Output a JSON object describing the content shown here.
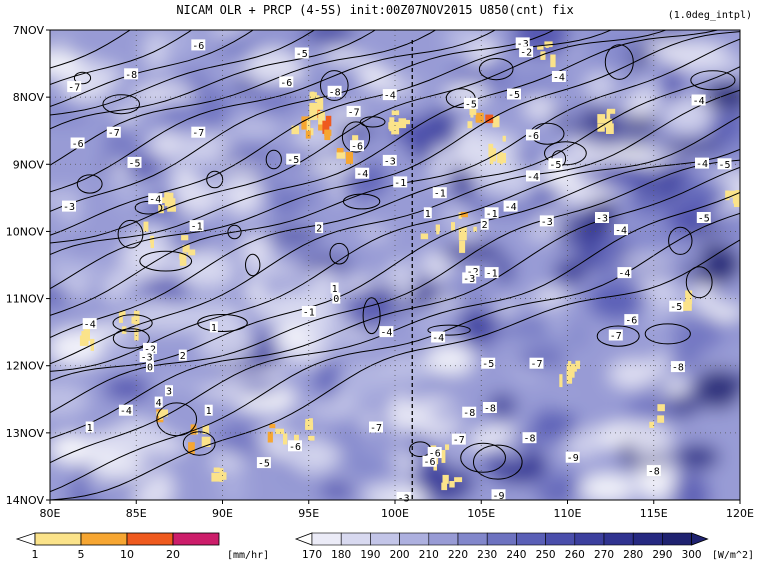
{
  "header": {
    "title": "NICAM  OLR + PRCP (4-5S) init:00Z07NOV2015 U850(cnt) fix",
    "note": "(1.0deg_intpl)"
  },
  "chart_data": {
    "type": "heatmap",
    "title": "NICAM  OLR + PRCP (4-5S) init:00Z07NOV2015 U850(cnt) fix",
    "x_ticks": [
      "80E",
      "85E",
      "90E",
      "95E",
      "100E",
      "105E",
      "110E",
      "115E",
      "120E"
    ],
    "x_range": [
      80,
      120
    ],
    "y_ticks": [
      "7NOV",
      "8NOV",
      "9NOV",
      "10NOV",
      "11NOV",
      "12NOV",
      "13NOV",
      "14NOV"
    ],
    "y_range": [
      "7NOV",
      "14NOV"
    ],
    "reference_line_lon": 101,
    "grid": true,
    "prcp_colorbar": {
      "labels": [
        "1",
        "5",
        "10",
        "20"
      ],
      "unit": "[mm/hr]",
      "colors": [
        "#ffffff",
        "#fbe38a",
        "#f6a632",
        "#ef5a1e",
        "#cc1d6a"
      ]
    },
    "olr_colorbar": {
      "labels": [
        "170",
        "180",
        "190",
        "200",
        "210",
        "220",
        "230",
        "240",
        "250",
        "260",
        "270",
        "280",
        "290",
        "300"
      ],
      "unit": "[W/m^2]",
      "colors": [
        "#ffffff",
        "#ebebf7",
        "#d8d9f0",
        "#c3c5e8",
        "#adb0df",
        "#989bd5",
        "#8287cb",
        "#6d72c0",
        "#5a5fb6",
        "#4a4eab",
        "#3c3f9e",
        "#303390",
        "#262981",
        "#1f2270"
      ]
    },
    "contour_labels": [
      {
        "lon": 88.6,
        "day": 7.23,
        "text": "-6"
      },
      {
        "lon": 94.6,
        "day": 7.35,
        "text": "-5"
      },
      {
        "lon": 93.7,
        "day": 7.78,
        "text": "-6"
      },
      {
        "lon": 84.7,
        "day": 7.66,
        "text": "-8"
      },
      {
        "lon": 81.4,
        "day": 7.85,
        "text": "-7"
      },
      {
        "lon": 99.7,
        "day": 7.97,
        "text": "-4"
      },
      {
        "lon": 97.6,
        "day": 8.22,
        "text": "-7"
      },
      {
        "lon": 96.5,
        "day": 7.92,
        "text": "-8"
      },
      {
        "lon": 104.4,
        "day": 8.1,
        "text": "-5"
      },
      {
        "lon": 106.9,
        "day": 7.96,
        "text": "-5"
      },
      {
        "lon": 107.4,
        "day": 7.2,
        "text": "-3"
      },
      {
        "lon": 107.6,
        "day": 7.33,
        "text": "-2"
      },
      {
        "lon": 109.5,
        "day": 7.7,
        "text": "-4"
      },
      {
        "lon": 117.6,
        "day": 8.05,
        "text": "-4"
      },
      {
        "lon": 83.7,
        "day": 8.53,
        "text": "-7"
      },
      {
        "lon": 81.6,
        "day": 8.69,
        "text": "-6"
      },
      {
        "lon": 88.6,
        "day": 8.53,
        "text": "-7"
      },
      {
        "lon": 97.8,
        "day": 8.73,
        "text": "-6"
      },
      {
        "lon": 108.0,
        "day": 8.57,
        "text": "-6"
      },
      {
        "lon": 84.9,
        "day": 8.98,
        "text": "-5"
      },
      {
        "lon": 94.1,
        "day": 8.93,
        "text": "-5"
      },
      {
        "lon": 99.7,
        "day": 8.95,
        "text": "-3"
      },
      {
        "lon": 98.1,
        "day": 9.14,
        "text": "-4"
      },
      {
        "lon": 100.3,
        "day": 9.27,
        "text": "-1"
      },
      {
        "lon": 102.6,
        "day": 9.43,
        "text": "-1"
      },
      {
        "lon": 106.7,
        "day": 9.63,
        "text": "-4"
      },
      {
        "lon": 109.3,
        "day": 9.0,
        "text": "-5"
      },
      {
        "lon": 108.0,
        "day": 9.18,
        "text": "-4"
      },
      {
        "lon": 117.8,
        "day": 8.99,
        "text": "-4"
      },
      {
        "lon": 119.1,
        "day": 9.0,
        "text": "-5"
      },
      {
        "lon": 81.1,
        "day": 9.63,
        "text": "-3"
      },
      {
        "lon": 86.1,
        "day": 9.52,
        "text": "-4"
      },
      {
        "lon": 88.5,
        "day": 9.92,
        "text": "-1"
      },
      {
        "lon": 101.9,
        "day": 9.73,
        "text": "1"
      },
      {
        "lon": 105.2,
        "day": 9.9,
        "text": "2"
      },
      {
        "lon": 105.6,
        "day": 9.73,
        "text": "-1"
      },
      {
        "lon": 108.8,
        "day": 9.85,
        "text": "-3"
      },
      {
        "lon": 112.0,
        "day": 9.8,
        "text": "-3"
      },
      {
        "lon": 113.1,
        "day": 9.98,
        "text": "-4"
      },
      {
        "lon": 117.9,
        "day": 9.8,
        "text": "-5"
      },
      {
        "lon": 95.6,
        "day": 9.95,
        "text": "2"
      },
      {
        "lon": 104.5,
        "day": 10.6,
        "text": "-2"
      },
      {
        "lon": 104.3,
        "day": 10.7,
        "text": "-3"
      },
      {
        "lon": 105.6,
        "day": 10.62,
        "text": "-1"
      },
      {
        "lon": 113.3,
        "day": 10.62,
        "text": "-4"
      },
      {
        "lon": 96.5,
        "day": 10.85,
        "text": "1"
      },
      {
        "lon": 96.6,
        "day": 11.0,
        "text": "0"
      },
      {
        "lon": 95.0,
        "day": 11.2,
        "text": "-1"
      },
      {
        "lon": 82.3,
        "day": 11.38,
        "text": "-4"
      },
      {
        "lon": 89.5,
        "day": 11.43,
        "text": "1"
      },
      {
        "lon": 113.7,
        "day": 11.32,
        "text": "-6"
      },
      {
        "lon": 112.8,
        "day": 11.55,
        "text": "-7"
      },
      {
        "lon": 116.3,
        "day": 11.12,
        "text": "-5"
      },
      {
        "lon": 99.5,
        "day": 11.5,
        "text": "-4"
      },
      {
        "lon": 102.5,
        "day": 11.58,
        "text": "-4"
      },
      {
        "lon": 85.8,
        "day": 11.75,
        "text": "-2"
      },
      {
        "lon": 85.6,
        "day": 11.87,
        "text": "-3"
      },
      {
        "lon": 85.8,
        "day": 12.02,
        "text": "0"
      },
      {
        "lon": 87.7,
        "day": 11.85,
        "text": "2"
      },
      {
        "lon": 105.4,
        "day": 11.97,
        "text": "-5"
      },
      {
        "lon": 108.2,
        "day": 11.97,
        "text": "-7"
      },
      {
        "lon": 116.4,
        "day": 12.02,
        "text": "-8"
      },
      {
        "lon": 86.9,
        "day": 12.38,
        "text": "3"
      },
      {
        "lon": 86.3,
        "day": 12.55,
        "text": "4"
      },
      {
        "lon": 89.2,
        "day": 12.67,
        "text": "1"
      },
      {
        "lon": 84.4,
        "day": 12.67,
        "text": "-4"
      },
      {
        "lon": 82.3,
        "day": 12.92,
        "text": "1"
      },
      {
        "lon": 98.9,
        "day": 12.92,
        "text": "-7"
      },
      {
        "lon": 104.3,
        "day": 12.7,
        "text": "-8"
      },
      {
        "lon": 105.5,
        "day": 12.63,
        "text": "-8"
      },
      {
        "lon": 107.8,
        "day": 13.08,
        "text": "-8"
      },
      {
        "lon": 94.2,
        "day": 13.2,
        "text": "-6"
      },
      {
        "lon": 102.3,
        "day": 13.3,
        "text": "-6"
      },
      {
        "lon": 103.7,
        "day": 13.1,
        "text": "-7"
      },
      {
        "lon": 110.3,
        "day": 13.37,
        "text": "-9"
      },
      {
        "lon": 115.0,
        "day": 13.57,
        "text": "-8"
      },
      {
        "lon": 92.4,
        "day": 13.45,
        "text": "-5"
      },
      {
        "lon": 102.0,
        "day": 13.43,
        "text": "-6"
      },
      {
        "lon": 100.5,
        "day": 13.97,
        "text": "-3"
      },
      {
        "lon": 106.0,
        "day": 13.93,
        "text": "-9"
      }
    ]
  }
}
